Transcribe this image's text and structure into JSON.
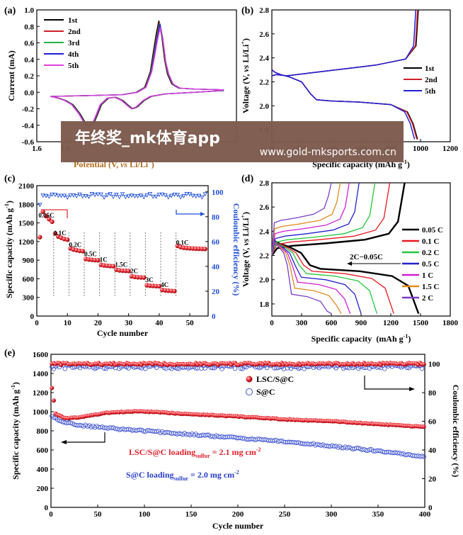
{
  "watermark": {
    "title": "年终奖_mk体育app",
    "url": "www.gold-mksports.com.cn"
  },
  "chart_data": [
    {
      "panel": "(a)",
      "type": "line",
      "xlabel_pre": "Potential (V, ",
      "xlabel_it": "vs",
      "xlabel_post": " Li/Li",
      "ylabel": "Current (mA)",
      "xlim": [
        1.6,
        3.0
      ],
      "ylim": [
        -0.6,
        1.0
      ],
      "xticks": [
        1.6,
        1.8,
        2.0,
        2.2,
        2.4,
        2.6,
        2.8,
        3.0
      ],
      "xtick_labels": [
        "1.6",
        "1.8",
        "",
        "",
        "",
        "",
        "",
        ""
      ],
      "yticks": [
        -0.6,
        -0.4,
        -0.2,
        0.0,
        0.2,
        0.4,
        0.6,
        0.8,
        1.0
      ],
      "ytick_labels": [
        "-0.6",
        "-0.4",
        "-0.2",
        "0.0",
        "0.2",
        "0.4",
        "0.6",
        "0.8",
        "1.0"
      ],
      "legend": [
        "1st",
        "2nd",
        "3rd",
        "4th",
        "5th"
      ],
      "colors": [
        "#000000",
        "#d0202a",
        "#22b14c",
        "#1f1fd8",
        "#e040e0"
      ],
      "cycles": [
        {
          "peak_height": 0.87,
          "shift": -0.004
        },
        {
          "peak_height": 0.85,
          "shift": 0.0
        },
        {
          "peak_height": 0.84,
          "shift": 0.002
        },
        {
          "peak_height": 0.83,
          "shift": 0.004
        },
        {
          "peak_height": 0.79,
          "shift": 0.006
        }
      ],
      "anodic_x": [
        1.7,
        2.2,
        2.3,
        2.36,
        2.4,
        2.42,
        2.44,
        2.46,
        2.48,
        2.5,
        2.52,
        2.55,
        2.6,
        2.7,
        2.9
      ],
      "anodic_y": [
        -0.05,
        -0.03,
        0.0,
        0.06,
        0.25,
        0.55,
        0.8,
        1.0,
        0.78,
        0.45,
        0.22,
        0.1,
        0.05,
        0.04,
        0.03
      ],
      "cathodic_x": [
        2.9,
        2.7,
        2.5,
        2.4,
        2.35,
        2.3,
        2.27,
        2.24,
        2.2,
        2.15,
        2.1,
        2.05,
        2.02,
        2.0,
        1.97,
        1.94,
        1.9,
        1.85,
        1.8,
        1.75,
        1.7
      ],
      "cathodic_y": [
        0.02,
        0.0,
        -0.02,
        -0.05,
        -0.1,
        -0.18,
        -0.2,
        -0.16,
        -0.1,
        -0.06,
        -0.07,
        -0.15,
        -0.28,
        -0.36,
        -0.41,
        -0.38,
        -0.26,
        -0.15,
        -0.1,
        -0.07,
        -0.05
      ]
    },
    {
      "panel": "(b)",
      "type": "line",
      "xlabel": "Specific capacity (mAh g",
      "ylabel_pre": "Voltage (V, ",
      "ylabel_it": "vs",
      "ylabel_post": " Li/Li",
      "xlim": [
        0,
        1200
      ],
      "ylim": [
        1.7,
        2.8
      ],
      "xticks": [
        0,
        200,
        400,
        600,
        800,
        1000,
        1200
      ],
      "xtick_labels": [
        "0",
        "200",
        "400",
        "600",
        "800",
        "1000",
        "1200"
      ],
      "yticks": [
        1.8,
        2.0,
        2.2,
        2.4,
        2.6,
        2.8
      ],
      "ytick_labels": [
        "1.8",
        "2.0",
        "2.2",
        "2.4",
        "2.6",
        "2.8"
      ],
      "legend": [
        "1st",
        "2nd",
        "5th"
      ],
      "colors": [
        "#000000",
        "#d0202a",
        "#1f1fd8"
      ],
      "cycles": [
        {
          "capacity": 980,
          "charge_capacity": 985
        },
        {
          "capacity": 975,
          "charge_capacity": 980
        },
        {
          "capacity": 960,
          "charge_capacity": 968
        }
      ]
    },
    {
      "panel": "(c)",
      "type": "scatter",
      "xlabel": "Cycle number",
      "ylabel": "Specific capacity (mAh g",
      "y2label": "Coulombic efficiency (%)",
      "xlim": [
        0,
        56
      ],
      "ylim": [
        0,
        2100
      ],
      "y2lim": [
        0,
        105
      ],
      "xticks": [
        0,
        10,
        20,
        30,
        40,
        50
      ],
      "xtick_labels": [
        "0",
        "10",
        "20",
        "30",
        "40",
        "50"
      ],
      "yticks": [
        0,
        300,
        600,
        900,
        1200,
        1500,
        1800,
        2100
      ],
      "ytick_labels": [
        "0",
        "300",
        "600",
        "900",
        "1200",
        "1500",
        "1800",
        "2100"
      ],
      "y2ticks": [
        0,
        20,
        40,
        60,
        80,
        100
      ],
      "y2tick_labels": [
        "0",
        "20",
        "40",
        "60",
        "80",
        "100"
      ],
      "rates": [
        {
          "label": "0.05C",
          "start": 1,
          "end": 5,
          "capacity": [
            1270,
            1680,
            1610,
            1560,
            1520
          ]
        },
        {
          "label": "0.1C",
          "start": 6,
          "end": 10,
          "capacity": [
            1330,
            1280,
            1260,
            1240,
            1230
          ]
        },
        {
          "label": "0.2C",
          "start": 11,
          "end": 15,
          "capacity": [
            1090,
            1070,
            1060,
            1050,
            1045
          ]
        },
        {
          "label": "0.5C",
          "start": 16,
          "end": 20,
          "capacity": [
            920,
            910,
            905,
            900,
            898
          ]
        },
        {
          "label": "1C",
          "start": 21,
          "end": 25,
          "capacity": [
            825,
            815,
            810,
            805,
            802
          ]
        },
        {
          "label": "1.5C",
          "start": 26,
          "end": 30,
          "capacity": [
            745,
            735,
            730,
            728,
            725
          ]
        },
        {
          "label": "2C",
          "start": 31,
          "end": 35,
          "capacity": [
            640,
            630,
            625,
            622,
            620
          ]
        },
        {
          "label": "3C",
          "start": 36,
          "end": 40,
          "capacity": [
            495,
            488,
            485,
            482,
            480
          ]
        },
        {
          "label": "4C",
          "start": 41,
          "end": 45,
          "capacity": [
            420,
            412,
            408,
            405,
            402
          ]
        },
        {
          "label": "0.1C",
          "start": 46,
          "end": 55,
          "capacity": [
            1130,
            1110,
            1100,
            1095,
            1090,
            1088,
            1085,
            1083,
            1082,
            1080
          ]
        }
      ],
      "ce_value": 97,
      "colors": {
        "capacity": "#d0202a",
        "ce": "#1f4fd8"
      }
    },
    {
      "panel": "(d)",
      "type": "line",
      "xlabel": "Specific capacity",
      "xlabel_unit": "mAh g",
      "ylabel_pre": "Voltage (V, ",
      "ylabel_it": "vs",
      "ylabel_post": " Li/Li",
      "xlim": [
        0,
        1800
      ],
      "ylim": [
        1.7,
        2.8
      ],
      "xticks": [
        0,
        300,
        600,
        900,
        1200,
        1500,
        1800
      ],
      "xtick_labels": [
        "0",
        "300",
        "600",
        "900",
        "1200",
        "1500",
        "1800"
      ],
      "yticks": [
        1.8,
        2.0,
        2.2,
        2.4,
        2.6,
        2.8
      ],
      "ytick_labels": [
        "1.8",
        "2.0",
        "2.2",
        "2.4",
        "2.6",
        "2.8"
      ],
      "annotation": "2C−0.05C",
      "series": [
        {
          "name": "0.05 C",
          "color": "#000000",
          "discharge_capacity": 1480,
          "plateau": 2.09,
          "charge_capacity": 1340,
          "charge_plateau": 2.28,
          "width": 2.4
        },
        {
          "name": "0.1 C",
          "color": "#e8181f",
          "discharge_capacity": 1230,
          "plateau": 2.07,
          "charge_capacity": 1190,
          "charge_plateau": 2.31,
          "width": 1.3
        },
        {
          "name": "0.2 C",
          "color": "#22c83a",
          "discharge_capacity": 1060,
          "plateau": 2.05,
          "charge_capacity": 1040,
          "charge_plateau": 2.33,
          "width": 1.3
        },
        {
          "name": "0.5 C",
          "color": "#2222cc",
          "discharge_capacity": 900,
          "plateau": 2.02,
          "charge_capacity": 880,
          "charge_plateau": 2.36,
          "width": 1.3
        },
        {
          "name": "1 C",
          "color": "#d020d0",
          "discharge_capacity": 790,
          "plateau": 1.98,
          "charge_capacity": 780,
          "charge_plateau": 2.4,
          "width": 1.3
        },
        {
          "name": "1.5 C",
          "color": "#e08a1a",
          "discharge_capacity": 700,
          "plateau": 1.93,
          "charge_capacity": 690,
          "charge_plateau": 2.44,
          "width": 1.3
        },
        {
          "name": "2 C",
          "color": "#7b3fc8",
          "discharge_capacity": 600,
          "plateau": 1.88,
          "charge_capacity": 600,
          "charge_plateau": 2.49,
          "width": 1.3
        }
      ]
    },
    {
      "panel": "(e)",
      "type": "scatter",
      "xlabel": "Cycle number",
      "ylabel": "Specific capacity (mAh g",
      "y2label": "Coulombic efficiency (%)",
      "xlim": [
        0,
        400
      ],
      "ylim": [
        0,
        1600
      ],
      "y2lim": [
        0,
        106.7
      ],
      "xticks": [
        0,
        50,
        100,
        150,
        200,
        250,
        300,
        350,
        400
      ],
      "xtick_labels": [
        "0",
        "50",
        "100",
        "150",
        "200",
        "250",
        "300",
        "350",
        "400"
      ],
      "yticks": [
        0,
        200,
        400,
        600,
        800,
        1000,
        1200,
        1400,
        1600
      ],
      "ytick_labels": [
        "0",
        "200",
        "400",
        "600",
        "800",
        "1000",
        "1200",
        "1400",
        "1600"
      ],
      "y2ticks": [
        0,
        20,
        40,
        60,
        80,
        100
      ],
      "y2tick_labels": [
        "0",
        "20",
        "40",
        "60",
        "80",
        "100"
      ],
      "legend": [
        "LSC/S@C",
        "S@C"
      ],
      "note1_pre": "LSC/S@C loading",
      "note1_sub": "sulfur",
      "note1_post": " = 2.1 mg cm",
      "note2_pre": "S@C loading",
      "note2_sub": "sulfur",
      "note2_post": " = 2.0 mg cm",
      "lsc_capacity_x": [
        1,
        5,
        15,
        30,
        60,
        95,
        140,
        200,
        250,
        300,
        350,
        400
      ],
      "lsc_capacity_y": [
        1250,
        980,
        930,
        940,
        990,
        1005,
        980,
        950,
        920,
        900,
        870,
        840
      ],
      "sc_capacity_x": [
        1,
        10,
        30,
        60,
        100,
        140,
        180,
        250,
        300,
        350,
        400
      ],
      "sc_capacity_y": [
        950,
        900,
        860,
        830,
        800,
        770,
        740,
        690,
        640,
        590,
        530
      ],
      "lsc_ce": 100,
      "sc_ce": 98,
      "colors": {
        "lsc": "#e0202a",
        "sc": "#3a4fd0"
      }
    }
  ]
}
